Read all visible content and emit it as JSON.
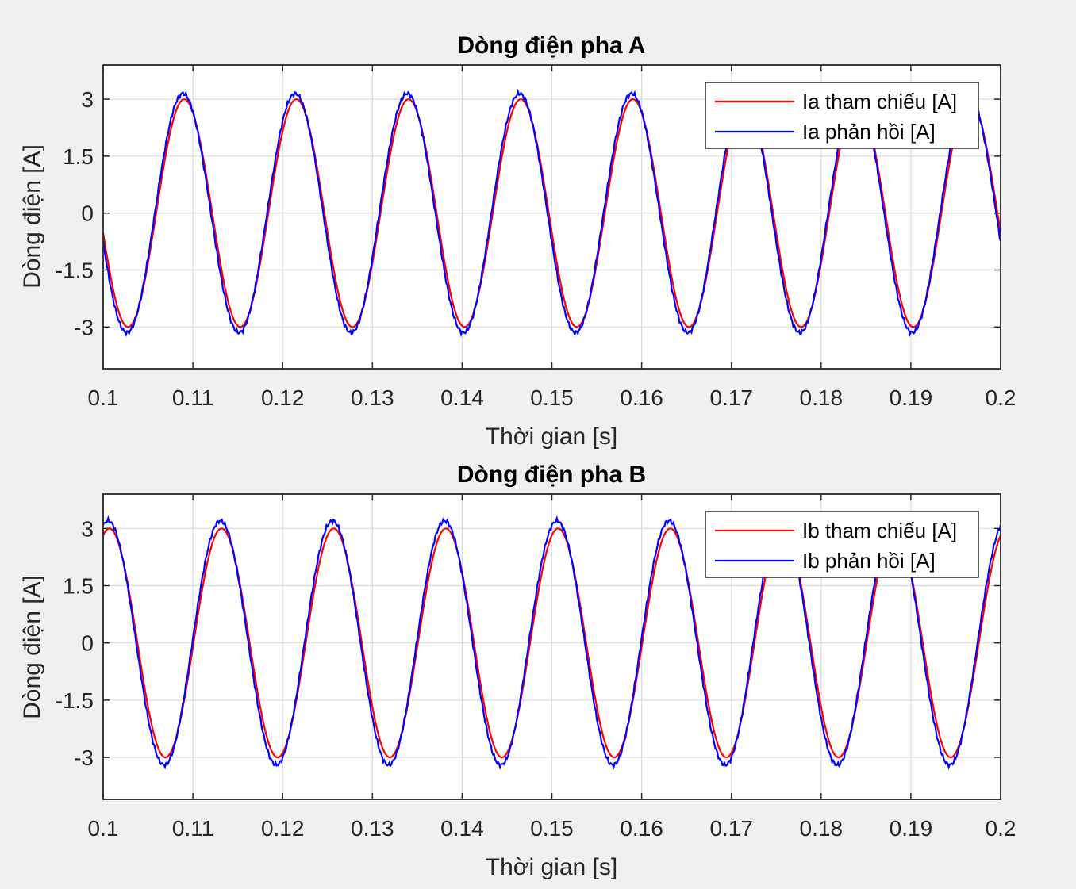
{
  "chart_data": [
    {
      "type": "line",
      "title": "Dòng điện pha A",
      "xlabel": "Thời gian [s]",
      "ylabel": "Dòng điện [A]",
      "xlim": [
        0.1,
        0.2
      ],
      "ylim": [
        -4.1,
        3.9
      ],
      "xticks": [
        0.1,
        0.11,
        0.12,
        0.13,
        0.14,
        0.15,
        0.16,
        0.17,
        0.18,
        0.19,
        0.2
      ],
      "xtick_labels": [
        "0.1",
        "0.11",
        "0.12",
        "0.13",
        "0.14",
        "0.15",
        "0.16",
        "0.17",
        "0.18",
        "0.19",
        "0.2"
      ],
      "yticks": [
        -3,
        -1.5,
        0,
        1.5,
        3
      ],
      "ytick_labels": [
        "-3",
        "-1.5",
        "0",
        "1.5",
        "3"
      ],
      "grid": true,
      "legend": "top-right",
      "series": [
        {
          "name": "Ia tham chiếu [A]",
          "color": "#ff0000",
          "amplitude": 3.0,
          "frequency_hz": 80,
          "phase_deg": 190,
          "ripple": 0
        },
        {
          "name": "Ia phản hồi [A]",
          "color": "#0000ff",
          "amplitude": 3.15,
          "frequency_hz": 80,
          "phase_deg": 194,
          "ripple": 0.04
        }
      ]
    },
    {
      "type": "line",
      "title": "Dòng điện pha B",
      "xlabel": "Thời gian [s]",
      "ylabel": "Dòng điện [A]",
      "xlim": [
        0.1,
        0.2
      ],
      "ylim": [
        -4.1,
        3.9
      ],
      "xticks": [
        0.1,
        0.11,
        0.12,
        0.13,
        0.14,
        0.15,
        0.16,
        0.17,
        0.18,
        0.19,
        0.2
      ],
      "xtick_labels": [
        "0.1",
        "0.11",
        "0.12",
        "0.13",
        "0.14",
        "0.15",
        "0.16",
        "0.17",
        "0.18",
        "0.19",
        "0.2"
      ],
      "yticks": [
        -3,
        -1.5,
        0,
        1.5,
        3
      ],
      "ytick_labels": [
        "-3",
        "-1.5",
        "0",
        "1.5",
        "3"
      ],
      "grid": true,
      "legend": "top-right",
      "series": [
        {
          "name": "Ib tham chiếu [A]",
          "color": "#ff0000",
          "amplitude": 3.0,
          "frequency_hz": 80,
          "phase_deg": 70,
          "ripple": 0
        },
        {
          "name": "Ib phản hồi [A]",
          "color": "#0000ff",
          "amplitude": 3.2,
          "frequency_hz": 80,
          "phase_deg": 74,
          "ripple": 0.04
        }
      ]
    }
  ]
}
